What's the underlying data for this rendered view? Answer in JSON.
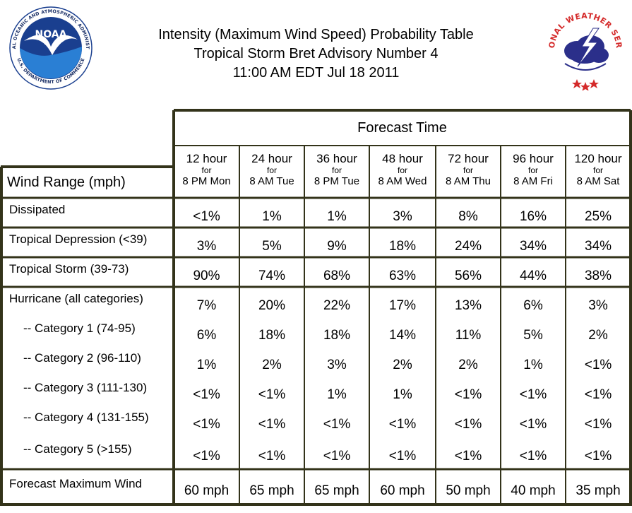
{
  "title": {
    "line1": "Intensity (Maximum Wind Speed) Probability Table",
    "line2": "Tropical Storm Bret Advisory Number 4",
    "line3": "11:00 AM EDT Jul 18 2011"
  },
  "logos": {
    "noaa_word": "NOAA",
    "noaa_ring": "NATIONAL OCEANIC AND ATMOSPHERIC ADMINISTRATION",
    "noaa_ring_bottom": "U.S. DEPARTMENT OF COMMERCE",
    "nws_ring": "NATIONAL WEATHER SERVICE",
    "noaa_color": "#1a3f8f",
    "nws_color": "#d42a2a"
  },
  "table": {
    "forecast_time_label": "Forecast Time",
    "row_header_label": "Wind Range (mph)",
    "columns": [
      {
        "hours": "12 hour",
        "for": "for",
        "when": "8 PM Mon"
      },
      {
        "hours": "24 hour",
        "for": "for",
        "when": "8 AM Tue"
      },
      {
        "hours": "36 hour",
        "for": "for",
        "when": "8 PM Tue"
      },
      {
        "hours": "48 hour",
        "for": "for",
        "when": "8 AM Wed"
      },
      {
        "hours": "72 hour",
        "for": "for",
        "when": "8 AM Thu"
      },
      {
        "hours": "96 hour",
        "for": "for",
        "when": "8 AM Fri"
      },
      {
        "hours": "120 hour",
        "for": "for",
        "when": "8 AM Sat"
      }
    ],
    "rows": [
      {
        "label": "Dissipated",
        "values": [
          "<1%",
          "1%",
          "1%",
          "3%",
          "8%",
          "16%",
          "25%"
        ]
      },
      {
        "label": "Tropical Depression (<39)",
        "values": [
          "3%",
          "5%",
          "9%",
          "18%",
          "24%",
          "34%",
          "34%"
        ]
      },
      {
        "label": "Tropical Storm (39-73)",
        "values": [
          "90%",
          "74%",
          "68%",
          "63%",
          "56%",
          "44%",
          "38%"
        ]
      },
      {
        "label": "Hurricane (all categories)",
        "values": [
          "7%",
          "20%",
          "22%",
          "17%",
          "13%",
          "6%",
          "3%"
        ]
      },
      {
        "label": "-- Category 1 (74-95)",
        "values": [
          "6%",
          "18%",
          "18%",
          "14%",
          "11%",
          "5%",
          "2%"
        ]
      },
      {
        "label": "-- Category 2 (96-110)",
        "values": [
          "1%",
          "2%",
          "3%",
          "2%",
          "2%",
          "1%",
          "<1%"
        ]
      },
      {
        "label": "-- Category 3 (111-130)",
        "values": [
          "<1%",
          "<1%",
          "1%",
          "1%",
          "<1%",
          "<1%",
          "<1%"
        ]
      },
      {
        "label": "-- Category 4 (131-155)",
        "values": [
          "<1%",
          "<1%",
          "<1%",
          "<1%",
          "<1%",
          "<1%",
          "<1%"
        ]
      },
      {
        "label": "-- Category 5 (>155)",
        "values": [
          "<1%",
          "<1%",
          "<1%",
          "<1%",
          "<1%",
          "<1%",
          "<1%"
        ]
      },
      {
        "label": "Forecast Maximum Wind",
        "values": [
          "60 mph",
          "65 mph",
          "65 mph",
          "60 mph",
          "50 mph",
          "40 mph",
          "35 mph"
        ]
      }
    ],
    "border_color": "#33331a"
  }
}
